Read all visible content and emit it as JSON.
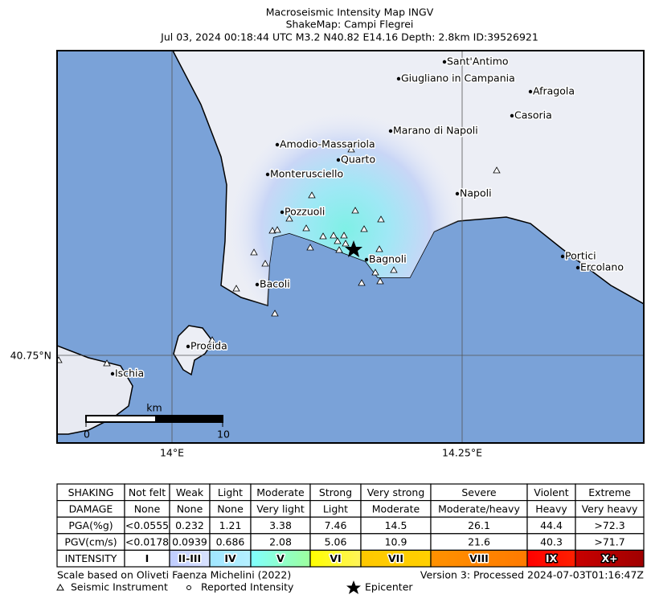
{
  "header": {
    "title": "Macroseismic Intensity Map INGV",
    "subtitle": "ShakeMap: Campi Flegrei",
    "event": "Jul 03, 2024 00:18:44 UTC M3.2 N40.82 E14.16 Depth: 2.8km ID:39526921"
  },
  "map": {
    "places": [
      "Sant'Antimo",
      "Giugliano in Campania",
      "Afragola",
      "Casoria",
      "Marano di Napoli",
      "Amodio-Massariola",
      "Quarto",
      "Monterusciello",
      "Napoli",
      "Pozzuoli",
      "Bagnoli",
      "Portici",
      "Ercolano",
      "Bacoli",
      "Procida",
      "Ischia"
    ],
    "lat_label": "40.75°N",
    "lon_labels": [
      "14°E",
      "14.25°E"
    ],
    "scale_bar": {
      "unit": "km",
      "ticks": [
        "0",
        "10"
      ]
    }
  },
  "legend_table": {
    "rows": [
      [
        "SHAKING",
        "Not felt",
        "Weak",
        "Light",
        "Moderate",
        "Strong",
        "Very strong",
        "Severe",
        "Violent",
        "Extreme"
      ],
      [
        "DAMAGE",
        "None",
        "None",
        "None",
        "Very light",
        "Light",
        "Moderate",
        "Moderate/heavy",
        "Heavy",
        "Very heavy"
      ],
      [
        "PGA(%g)",
        "<0.0555",
        "0.232",
        "1.21",
        "3.38",
        "7.46",
        "14.5",
        "26.1",
        "44.4",
        ">72.3"
      ],
      [
        "PGV(cm/s)",
        "<0.0178",
        "0.0939",
        "0.686",
        "2.08",
        "5.06",
        "10.9",
        "21.6",
        "40.3",
        ">71.7"
      ],
      [
        "INTENSITY",
        "I",
        "II-III",
        "IV",
        "V",
        "VI",
        "VII",
        "VIII",
        "IX",
        "X+"
      ]
    ]
  },
  "footer": {
    "scale_note": "Scale based on Oliveti Faenza Michelini (2022)",
    "version": "Version 3: Processed 2024-07-03T01:16:47Z",
    "symbols": [
      "Seismic Instrument",
      "Reported Intensity",
      "Epicenter"
    ]
  }
}
